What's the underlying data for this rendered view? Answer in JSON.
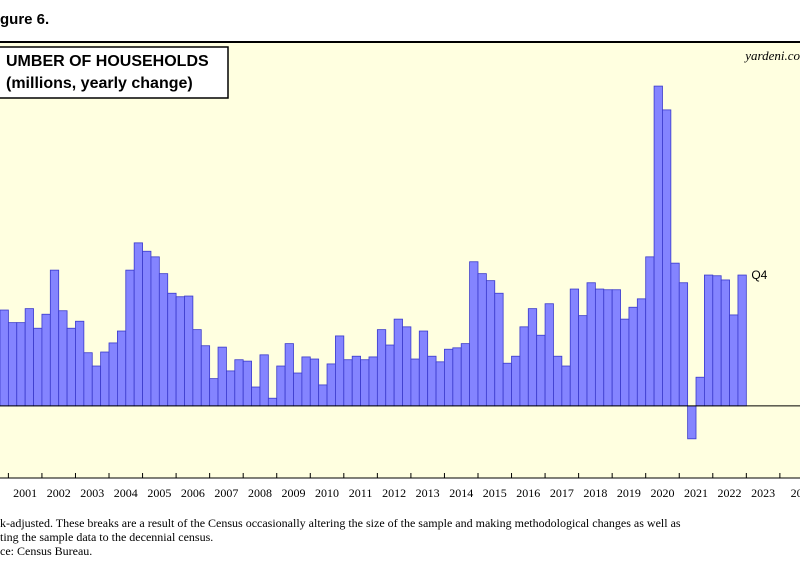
{
  "chart_data": {
    "type": "bar",
    "figure_label": "gure 6.",
    "title": "UMBER OF HOUSEHOLDS",
    "subtitle": "(millions, yearly change)",
    "source_mark": "yardeni.co",
    "annotation": "Q4",
    "x": [
      2000.75,
      2001,
      2001.25,
      2001.5,
      2001.75,
      2002,
      2002.25,
      2002.5,
      2002.75,
      2003,
      2003.25,
      2003.5,
      2003.75,
      2004,
      2004.25,
      2004.5,
      2004.75,
      2005,
      2005.25,
      2005.5,
      2005.75,
      2006,
      2006.25,
      2006.5,
      2006.75,
      2007,
      2007.25,
      2007.5,
      2007.75,
      2008,
      2008.25,
      2008.5,
      2008.75,
      2009,
      2009.25,
      2009.5,
      2009.75,
      2010,
      2010.25,
      2010.5,
      2010.75,
      2011,
      2011.25,
      2011.5,
      2011.75,
      2012,
      2012.25,
      2012.5,
      2012.75,
      2013,
      2013.25,
      2013.5,
      2013.75,
      2014,
      2014.25,
      2014.5,
      2014.75,
      2015,
      2015.25,
      2015.5,
      2015.75,
      2016,
      2016.25,
      2016.5,
      2016.75,
      2017,
      2017.25,
      2017.5,
      2017.75,
      2018,
      2018.25,
      2018.5,
      2018.75,
      2019,
      2019.25,
      2019.5,
      2019.75,
      2020,
      2020.25,
      2020.5,
      2020.75,
      2021,
      2021.25,
      2021.5,
      2021.75,
      2022,
      2022.25,
      2022.5,
      2022.75
    ],
    "values": [
      1.37,
      1.19,
      1.19,
      1.39,
      1.11,
      1.31,
      1.94,
      1.36,
      1.11,
      1.21,
      0.76,
      0.57,
      0.77,
      0.9,
      1.07,
      1.94,
      2.33,
      2.21,
      2.13,
      1.89,
      1.61,
      1.56,
      1.57,
      1.09,
      0.86,
      0.39,
      0.84,
      0.5,
      0.66,
      0.64,
      0.27,
      0.73,
      0.11,
      0.57,
      0.89,
      0.47,
      0.7,
      0.67,
      0.3,
      0.6,
      1.0,
      0.66,
      0.71,
      0.66,
      0.7,
      1.09,
      0.87,
      1.24,
      1.13,
      0.67,
      1.07,
      0.71,
      0.63,
      0.81,
      0.83,
      0.89,
      2.06,
      1.89,
      1.79,
      1.61,
      0.61,
      0.71,
      1.13,
      1.39,
      1.01,
      1.46,
      0.71,
      0.57,
      1.67,
      1.29,
      1.76,
      1.67,
      1.66,
      1.66,
      1.24,
      1.41,
      1.53,
      2.13,
      4.57,
      4.23,
      2.04,
      1.76,
      -0.47,
      0.41,
      1.87,
      1.86,
      1.8,
      1.3,
      1.87
    ],
    "bar_width": 0.25,
    "color": "#8484ff",
    "xlim": [
      2000.75,
      2024.6
    ],
    "ylim": [
      -1.03,
      5.2
    ],
    "xticks": [
      {
        "value": 2000,
        "label": "0"
      },
      2001,
      2002,
      2003,
      2004,
      2005,
      2006,
      2007,
      2008,
      2009,
      2010,
      2011,
      2012,
      2013,
      2014,
      2015,
      2016,
      2017,
      2018,
      2019,
      2020,
      2021,
      2022,
      2023,
      {
        "value": 2024,
        "label": "20"
      }
    ],
    "footnotes": [
      "k-adjusted. These breaks are a result of the Census occasionally altering the size of the sample and making methodological changes as well as",
      "ting the sample data to the decennial census.",
      "ce: Census Bureau."
    ]
  }
}
